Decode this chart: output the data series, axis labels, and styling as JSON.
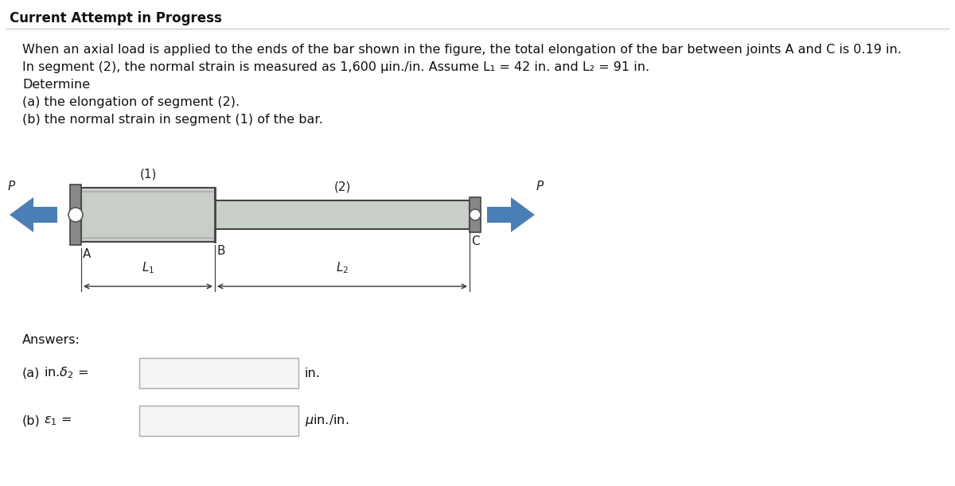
{
  "title": "Current Attempt in Progress",
  "bg_color": "#ffffff",
  "header_line_color": "#cccccc",
  "text_lines": [
    "When an axial load is applied to the ends of the bar shown in the figure, the total elongation of the bar between joints A and C is 0.19 in.",
    "In segment (2), the normal strain is measured as 1,600 μin./in. Assume L₁ = 42 in. and L₂ = 91 in.",
    "Determine",
    "(a) the elongation of segment (2).",
    "(b) the normal strain in segment (1) of the bar."
  ],
  "bar_color_fill": "#c8cec8",
  "bar_color_dark": "#444444",
  "bar_color_shadow": "#999999",
  "arrow_color": "#4a7fb5",
  "answers_label": "Answers:",
  "font_size_text": 11.5,
  "font_size_title": 12.0,
  "font_size_diagram": 11.0
}
